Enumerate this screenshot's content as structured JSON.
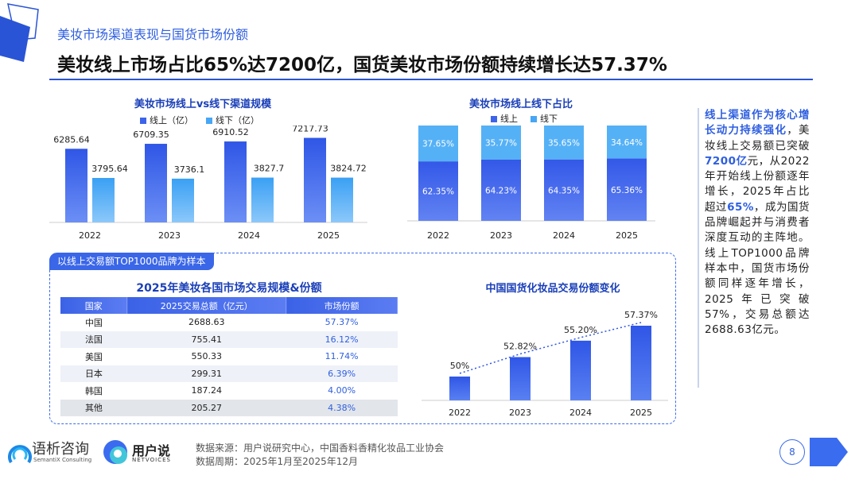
{
  "header": {
    "section_label": "美妆市场渠道表现与国货市场份额",
    "title": "美妆线上市场占比65%达7200亿，国货美妆市场份额持续增长达57.37%"
  },
  "colors": {
    "accent": "#2a54d6",
    "online_bar": "#3d63ea",
    "offline_bar": "#47a6f5",
    "light_blue": "#5bb4f7"
  },
  "chart_data": [
    {
      "type": "bar",
      "title": "美妆市场线上vs线下渠道规模",
      "categories": [
        "2022",
        "2023",
        "2024",
        "2025"
      ],
      "series": [
        {
          "name": "线上（亿）",
          "values": [
            6285.64,
            6709.35,
            6910.52,
            7217.73
          ],
          "labels": [
            "6285.64",
            "6709.35",
            "6910.52",
            "7217.73"
          ]
        },
        {
          "name": "线下（亿）",
          "values": [
            3795.64,
            3736.1,
            3827.7,
            3824.72
          ],
          "labels": [
            "3795.64",
            "3736.1",
            "3827.7",
            "3824.72"
          ]
        }
      ],
      "ylim": [
        0,
        8000
      ]
    },
    {
      "type": "bar",
      "stacked": true,
      "title": "美妆市场线上线下占比",
      "categories": [
        "2022",
        "2023",
        "2024",
        "2025"
      ],
      "series": [
        {
          "name": "线上",
          "values": [
            62.35,
            64.23,
            64.35,
            65.36
          ],
          "labels": [
            "62.35%",
            "64.23%",
            "64.35%",
            "65.36%"
          ]
        },
        {
          "name": "线下",
          "values": [
            37.65,
            35.77,
            35.65,
            34.64
          ],
          "labels": [
            "37.65%",
            "35.77%",
            "35.65%",
            "34.64%"
          ]
        }
      ],
      "ylim": [
        0,
        100
      ]
    },
    {
      "type": "bar",
      "title": "中国国货化妆品交易份额变化",
      "categories": [
        "2022",
        "2023",
        "2024",
        "2025"
      ],
      "values": [
        50,
        52.82,
        55.2,
        57.37
      ],
      "labels": [
        "50%",
        "52.82%",
        "55.20%",
        "57.37%"
      ],
      "ylim": [
        45,
        58
      ],
      "trendline": true
    }
  ],
  "sample_tag": "以线上交易额TOP1000品牌为样本",
  "table": {
    "title": "2025年美妆各国市场交易规模&份额",
    "headers": [
      "国家",
      "2025交易总额（亿元）",
      "市场份额"
    ],
    "rows": [
      [
        "中国",
        "2688.63",
        "57.37%"
      ],
      [
        "法国",
        "755.41",
        "16.12%"
      ],
      [
        "美国",
        "550.33",
        "11.74%"
      ],
      [
        "日本",
        "299.31",
        "6.39%"
      ],
      [
        "韩国",
        "187.24",
        "4.00%"
      ],
      [
        "其他",
        "205.27",
        "4.38%"
      ]
    ]
  },
  "sidebar": {
    "p1": "线上渠道作为核心增长动力持续强化",
    "p2": "，美妆线上交易额已突破",
    "p3": "7200亿",
    "p4": "元，从2022年开始线上份额逐年增长，2025年占比超过",
    "p5": "65%",
    "p6": "，成为国货品牌崛起并与消费者深度互动的主阵地。线上TOP1000品牌样本中，国货市场份额同样逐年增长，2025年已突破57%，交易总额达2688.63亿元。"
  },
  "footer": {
    "source": "数据来源：用户说研究中心，中国香料香精化妆品工业协会",
    "period": "数据周期：2025年1月至2025年12月",
    "logo1_name": "语析咨询",
    "logo1_sub": "SemantiX Consulting",
    "logo2_name": "用户说",
    "logo2_sub": "NETVOICES",
    "page_number": "8"
  }
}
